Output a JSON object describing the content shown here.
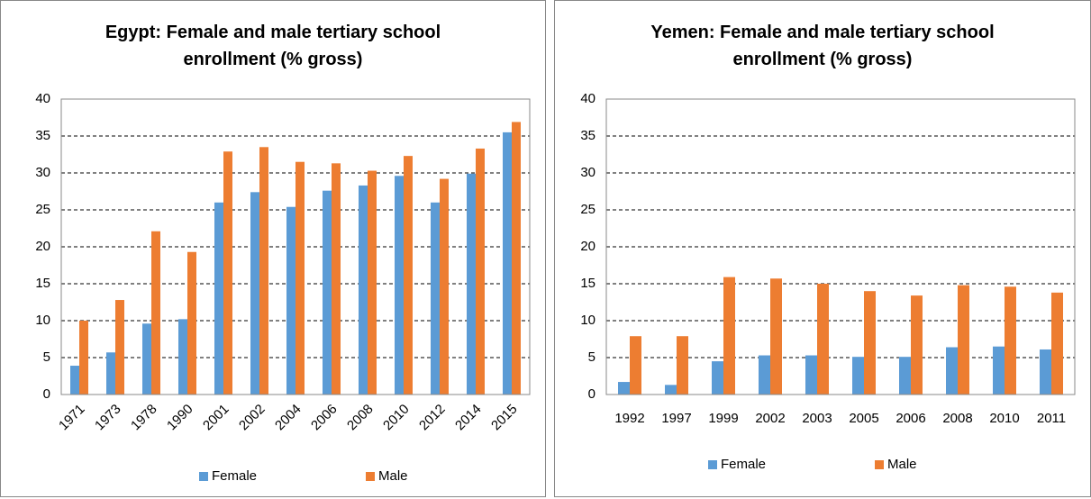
{
  "chart_data": [
    {
      "type": "bar",
      "title": "Egypt: Female and male tertiary school enrollment (% gross)",
      "categories": [
        "1971",
        "1973",
        "1978",
        "1990",
        "2001",
        "2002",
        "2004",
        "2006",
        "2008",
        "2010",
        "2012",
        "2014",
        "2015"
      ],
      "series": [
        {
          "name": "Female",
          "color": "#5b9bd5",
          "values": [
            3.9,
            5.7,
            9.6,
            10.2,
            26.0,
            27.4,
            25.4,
            27.6,
            28.3,
            29.6,
            26.0,
            29.9,
            35.5
          ]
        },
        {
          "name": "Male",
          "color": "#ed7d31",
          "values": [
            10.0,
            12.8,
            22.1,
            19.3,
            32.9,
            33.5,
            31.5,
            31.3,
            30.3,
            32.3,
            29.2,
            33.3,
            36.9
          ]
        }
      ],
      "ylim": [
        0,
        40
      ],
      "yticks": [
        0,
        5,
        10,
        15,
        20,
        25,
        30,
        35,
        40
      ],
      "grid": true,
      "legend": "bottom"
    },
    {
      "type": "bar",
      "title": "Yemen: Female and male tertiary school enrollment (% gross)",
      "categories": [
        "1992",
        "1997",
        "1999",
        "2002",
        "2003",
        "2005",
        "2006",
        "2008",
        "2010",
        "2011"
      ],
      "series": [
        {
          "name": "Female",
          "color": "#5b9bd5",
          "values": [
            1.7,
            1.3,
            4.5,
            5.3,
            5.3,
            5.1,
            5.1,
            6.4,
            6.5,
            6.1
          ]
        },
        {
          "name": "Male",
          "color": "#ed7d31",
          "values": [
            7.9,
            7.9,
            15.9,
            15.7,
            15.0,
            14.0,
            13.4,
            14.8,
            14.6,
            13.8
          ]
        }
      ],
      "ylim": [
        0,
        40
      ],
      "yticks": [
        0,
        5,
        10,
        15,
        20,
        25,
        30,
        35,
        40
      ],
      "grid": true,
      "legend": "bottom"
    }
  ]
}
